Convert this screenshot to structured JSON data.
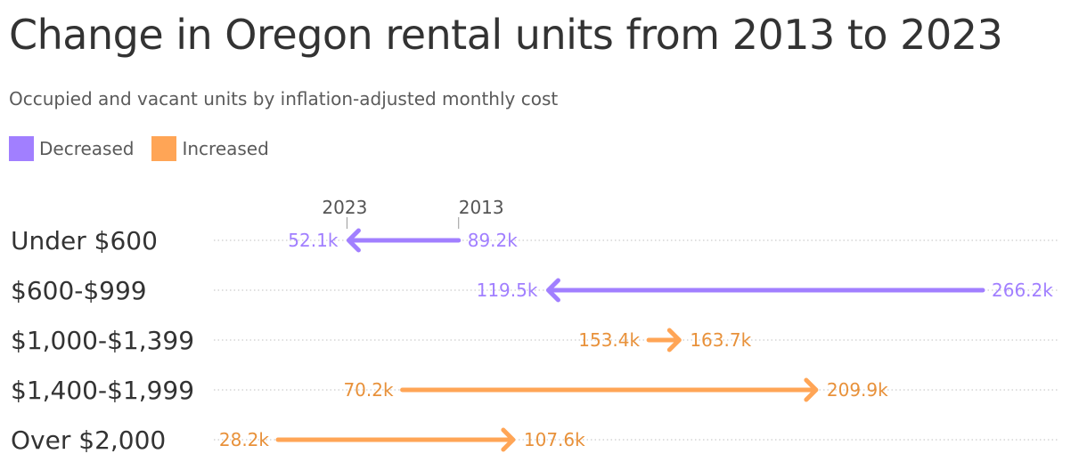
{
  "title": "Change in Oregon rental units from 2013 to 2023",
  "subtitle": "Occupied and vacant units by inflation-adjusted monthly cost",
  "legend": [
    {
      "label": "Decreased",
      "color": "#a17fff"
    },
    {
      "label": "Increased",
      "color": "#ffa556"
    }
  ],
  "chart_data": {
    "type": "arrow-dumbbell",
    "start_label": "2013",
    "end_label": "2023",
    "categories": [
      "Under $600",
      "$600-$999",
      "$1,000-$1,399",
      "$1,400-$1,999",
      "Over $2,000"
    ],
    "series": [
      {
        "name": "2013",
        "values": [
          89.2,
          266.2,
          153.4,
          70.2,
          28.2
        ]
      },
      {
        "name": "2023",
        "values": [
          52.1,
          119.5,
          163.7,
          209.9,
          107.6
        ]
      }
    ],
    "value_labels_2013": [
      "89.2k",
      "266.2k",
      "153.4k",
      "70.2k",
      "28.2k"
    ],
    "value_labels_2023": [
      "52.1k",
      "119.5k",
      "163.7k",
      "209.9k",
      "107.6k"
    ],
    "unit": "k",
    "colors": {
      "decreased": "#a17fff",
      "increased": "#ffa556",
      "decreased_text": "#a17fff",
      "increased_text": "#e8913a",
      "grid": "#cccccc"
    }
  }
}
